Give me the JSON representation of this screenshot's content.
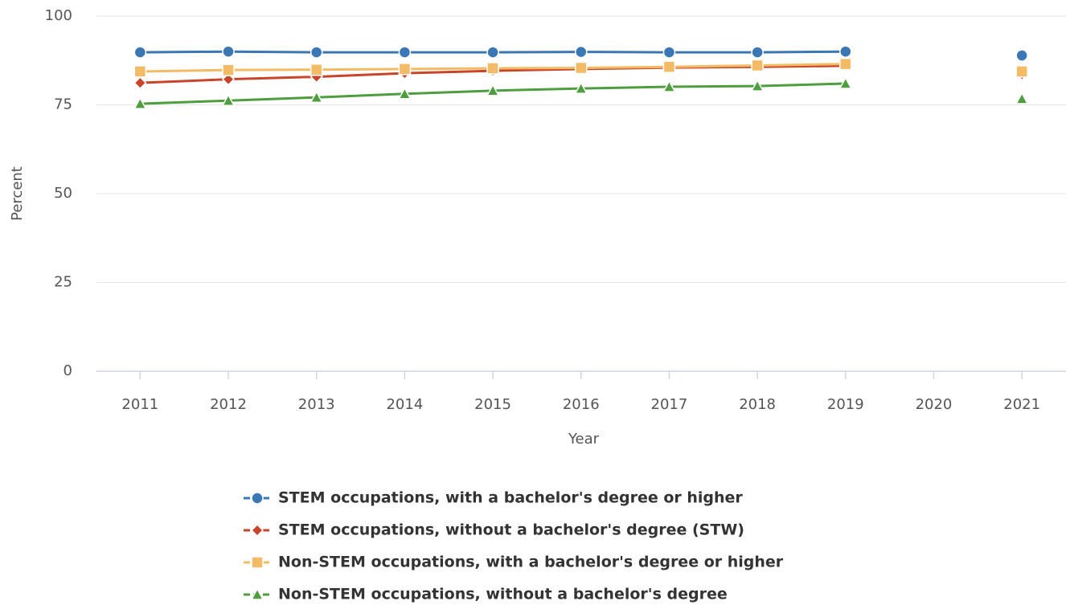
{
  "chart_data": {
    "type": "line",
    "x_label": "Year",
    "y_label": "Percent",
    "categories": [
      "2011",
      "2012",
      "2013",
      "2014",
      "2015",
      "2016",
      "2017",
      "2018",
      "2019",
      "2020",
      "2021"
    ],
    "ylim": [
      0,
      100
    ],
    "yticks": [
      0,
      25,
      50,
      75,
      100
    ],
    "grid": true,
    "legend": "bottom",
    "series": [
      {
        "name": "STEM occupations, with a bachelor's degree or higher",
        "color": "#3b77b4",
        "marker": "circle",
        "values": [
          89.8,
          90.0,
          89.8,
          89.8,
          89.8,
          89.9,
          89.8,
          89.8,
          90.0,
          null,
          88.9
        ]
      },
      {
        "name": "STEM occupations, without a bachelor's degree (STW)",
        "color": "#c8452a",
        "marker": "diamond",
        "values": [
          81.2,
          82.2,
          82.9,
          83.9,
          84.6,
          85.1,
          85.5,
          85.7,
          86.0,
          null,
          83.6
        ]
      },
      {
        "name": "Non-STEM occupations, with a bachelor's degree or higher",
        "color": "#f4bb66",
        "marker": "square",
        "values": [
          84.4,
          84.8,
          84.9,
          85.1,
          85.3,
          85.4,
          85.7,
          86.1,
          86.5,
          null,
          84.4
        ]
      },
      {
        "name": "Non-STEM occupations, without a bachelor's degree",
        "color": "#4e9e3f",
        "marker": "triangle",
        "values": [
          75.3,
          76.2,
          77.1,
          78.1,
          79.0,
          79.6,
          80.1,
          80.3,
          81.0,
          null,
          76.7
        ]
      }
    ]
  }
}
